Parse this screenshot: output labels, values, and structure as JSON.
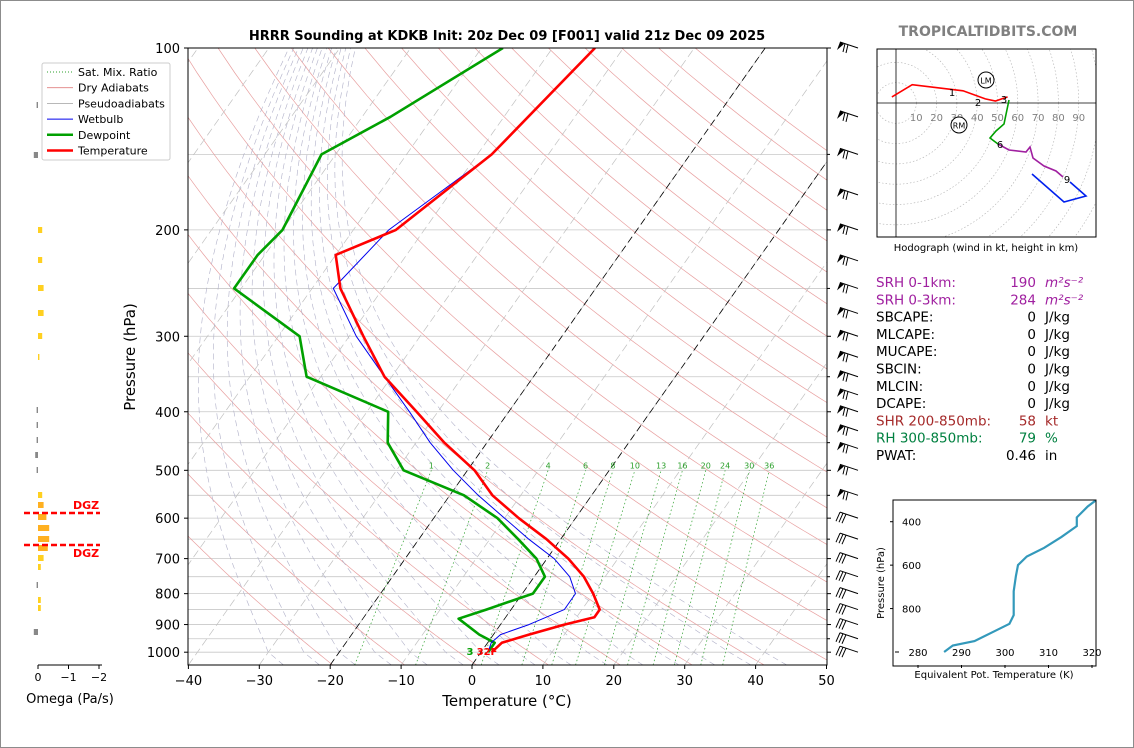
{
  "header": {
    "title": "HRRR Sounding at KDKB Init: 20z Dec 09 [F001] valid 21z Dec 09 2025",
    "brand": "TROPICALTIDBITS.COM"
  },
  "skewt": {
    "xlabel": "Temperature (°C)",
    "ylabel": "Pressure (hPa)",
    "x_ticks": [
      "−40",
      "−30",
      "−20",
      "−10",
      "0",
      "10",
      "20",
      "30",
      "40",
      "50"
    ],
    "y_ticks": [
      "100",
      "200",
      "300",
      "400",
      "500",
      "600",
      "700",
      "800",
      "900",
      "1000"
    ],
    "mixing_ratio_labels": [
      "1",
      "2",
      "4",
      "6",
      "8",
      "10",
      "13",
      "16",
      "20",
      "24",
      "30",
      "36"
    ],
    "surface_label": "32F",
    "surface_marker": "3"
  },
  "legend": {
    "items": [
      {
        "label": "Sat. Mix. Ratio",
        "color": "#2ca02c",
        "style": "dotted"
      },
      {
        "label": "Dry Adiabats",
        "color": "#e08080",
        "style": "solid-thin"
      },
      {
        "label": "Pseudoadiabats",
        "color": "#a0a0a0",
        "style": "solid-thin"
      },
      {
        "label": "Wetbulb",
        "color": "#0000ee",
        "style": "solid"
      },
      {
        "label": "Dewpoint",
        "color": "#00a000",
        "style": "thick"
      },
      {
        "label": "Temperature",
        "color": "#ff0000",
        "style": "thick"
      }
    ]
  },
  "omega": {
    "xlabel": "Omega (Pa/s)",
    "x_ticks": [
      "0",
      "−1",
      "−2"
    ],
    "dgz_label": "DGZ"
  },
  "hodograph": {
    "caption": "Hodograph (wind in kt, height in km)",
    "ring_labels": [
      "10",
      "20",
      "30",
      "40",
      "50",
      "60",
      "70",
      "80",
      "90"
    ],
    "height_labels": [
      "1",
      "2",
      "3",
      "6",
      "9"
    ],
    "lm_label": "LM",
    "rm_label": "RM"
  },
  "indices": [
    {
      "name": "SRH 0-1km:",
      "value": "190",
      "unit": "m²s⁻²",
      "color": "#a020a0"
    },
    {
      "name": "SRH 0-3km:",
      "value": "284",
      "unit": "m²s⁻²",
      "color": "#a020a0"
    },
    {
      "name": "SBCAPE:",
      "value": "0",
      "unit": "J/kg",
      "color": "#000000"
    },
    {
      "name": "MLCAPE:",
      "value": "0",
      "unit": "J/kg",
      "color": "#000000"
    },
    {
      "name": "MUCAPE:",
      "value": "0",
      "unit": "J/kg",
      "color": "#000000"
    },
    {
      "name": "SBCIN:",
      "value": "0",
      "unit": "J/kg",
      "color": "#000000"
    },
    {
      "name": "MLCIN:",
      "value": "0",
      "unit": "J/kg",
      "color": "#000000"
    },
    {
      "name": "DCAPE:",
      "value": "0",
      "unit": "J/kg",
      "color": "#000000"
    },
    {
      "name": "SHR 200-850mb:",
      "value": "58",
      "unit": "kt",
      "color": "#a52a2a"
    },
    {
      "name": "RH 300-850mb:",
      "value": "79",
      "unit": "%",
      "color": "#008040"
    },
    {
      "name": "PWAT:",
      "value": "0.46",
      "unit": "in",
      "color": "#000000"
    }
  ],
  "theta_e": {
    "xlabel": "Equivalent Pot. Temperature (K)",
    "ylabel": "Pressure (hPa)",
    "x_ticks": [
      "280",
      "290",
      "300",
      "310",
      "320"
    ],
    "y_ticks": [
      "400",
      "600",
      "800"
    ]
  },
  "chart_data": {
    "type": "line",
    "title": "HRRR Sounding at KDKB Init: 20z Dec 09 [F001] valid 21z Dec 09 2025",
    "xlabel": "Temperature (°C)",
    "ylabel": "Pressure (hPa)",
    "xlim": [
      -40,
      50
    ],
    "ylim": [
      1050,
      100
    ],
    "y_scale": "log",
    "skew": "skew-T",
    "grid": true,
    "legend": "top-left",
    "series": [
      {
        "name": "Temperature",
        "color": "#ff0000",
        "points": [
          [
            100,
            -44
          ],
          [
            150,
            -48
          ],
          [
            200,
            -54
          ],
          [
            220,
            -60
          ],
          [
            250,
            -56
          ],
          [
            300,
            -48
          ],
          [
            350,
            -41
          ],
          [
            400,
            -33
          ],
          [
            450,
            -26
          ],
          [
            500,
            -19
          ],
          [
            550,
            -14
          ],
          [
            600,
            -8
          ],
          [
            650,
            -2
          ],
          [
            700,
            3
          ],
          [
            750,
            7
          ],
          [
            800,
            10
          ],
          [
            850,
            12.5
          ],
          [
            875,
            12.5
          ],
          [
            900,
            9
          ],
          [
            935,
            5
          ],
          [
            965,
            2
          ],
          [
            1000,
            1.5
          ]
        ]
      },
      {
        "name": "Wetbulb",
        "color": "#0000ee",
        "points": [
          [
            100,
            -44
          ],
          [
            150,
            -48
          ],
          [
            200,
            -55
          ],
          [
            250,
            -57
          ],
          [
            300,
            -49
          ],
          [
            350,
            -41
          ],
          [
            400,
            -34
          ],
          [
            450,
            -28
          ],
          [
            500,
            -22
          ],
          [
            550,
            -16
          ],
          [
            600,
            -10
          ],
          [
            650,
            -4.5
          ],
          [
            700,
            1
          ],
          [
            750,
            5
          ],
          [
            800,
            7.5
          ],
          [
            850,
            7.5
          ],
          [
            900,
            4
          ],
          [
            935,
            1
          ],
          [
            965,
            0.5
          ],
          [
            1000,
            1
          ]
        ]
      },
      {
        "name": "Dewpoint",
        "color": "#00a000",
        "points": [
          [
            100,
            -57
          ],
          [
            130,
            -66
          ],
          [
            150,
            -72
          ],
          [
            200,
            -70
          ],
          [
            220,
            -71
          ],
          [
            250,
            -71
          ],
          [
            300,
            -57
          ],
          [
            350,
            -52
          ],
          [
            400,
            -37
          ],
          [
            450,
            -34
          ],
          [
            500,
            -29
          ],
          [
            550,
            -18
          ],
          [
            600,
            -11
          ],
          [
            650,
            -6
          ],
          [
            700,
            -1.5
          ],
          [
            750,
            1.5
          ],
          [
            800,
            1.5
          ],
          [
            850,
            -3.5
          ],
          [
            880,
            -6.5
          ],
          [
            935,
            -2
          ],
          [
            965,
            1
          ],
          [
            1000,
            1
          ]
        ]
      },
      {
        "name": "Equivalent Pot. Temperature",
        "color": "#3399bb",
        "points": [
          [
            1000,
            286
          ],
          [
            970,
            288
          ],
          [
            950,
            293
          ],
          [
            900,
            298
          ],
          [
            870,
            301
          ],
          [
            830,
            302
          ],
          [
            800,
            302
          ],
          [
            720,
            302
          ],
          [
            650,
            302.5
          ],
          [
            600,
            303
          ],
          [
            560,
            305
          ],
          [
            520,
            309
          ],
          [
            470,
            313
          ],
          [
            420,
            316.5
          ],
          [
            380,
            316.5
          ],
          [
            330,
            319
          ],
          [
            300,
            321
          ]
        ]
      },
      {
        "name": "Hodograph",
        "color": "#ff0000",
        "points": [
          [
            -2,
            3
          ],
          [
            8,
            9
          ],
          [
            33,
            6
          ],
          [
            44,
            2
          ],
          [
            49,
            1
          ],
          [
            55,
            3
          ]
        ]
      }
    ]
  }
}
